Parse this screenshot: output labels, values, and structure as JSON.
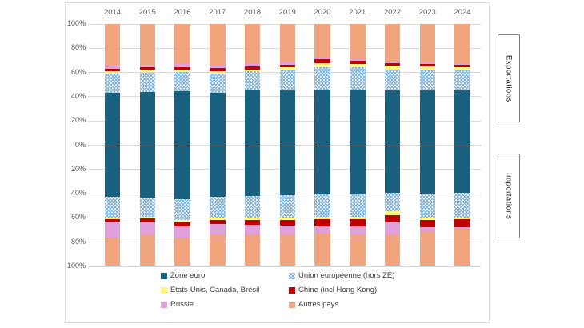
{
  "chart": {
    "side_labels": {
      "top": "Exportations",
      "bottom": "Importations"
    },
    "y_axis_tick_labels": [
      "100%",
      "80%",
      "60%",
      "40%",
      "20%",
      "0%",
      "20%",
      "40%",
      "60%",
      "80%",
      "100%"
    ],
    "colors": {
      "zone_euro": "#1a607f",
      "ue_hors_ze": "#8fbade",
      "usa_canada_bresil": "#fdf87d",
      "chine": "#c00000",
      "russie": "#e2a0db",
      "autres_pays": "#f1a57e",
      "gridline": "#d9d9d9",
      "zero_line": "#bdbdbd",
      "axis_text": "#595959"
    },
    "legend": [
      {
        "key": "zone_euro",
        "label": "Zone euro"
      },
      {
        "key": "ue_hors_ze",
        "label": "Union européenne (hors ZE)"
      },
      {
        "key": "usa_canada_bresil",
        "label": "États-Unis, Canada, Brésil"
      },
      {
        "key": "chine",
        "label": "Chine (incl Hong Kong)"
      },
      {
        "key": "russie",
        "label": "Russie"
      },
      {
        "key": "autres_pays",
        "label": "Autres pays"
      }
    ]
  },
  "chart_data": {
    "type": "bar",
    "variant": "100-percent-stacked, mirrored top(exports)/bottom(imports)",
    "unit": "%",
    "ylim": [
      0,
      100
    ],
    "grid": true,
    "categories": [
      "2014",
      "2015",
      "2016",
      "2017",
      "2018",
      "2019",
      "2020",
      "2021",
      "2022",
      "2023",
      "2024"
    ],
    "panels": [
      {
        "name": "Exportations",
        "series": [
          {
            "key": "zone_euro",
            "name": "Zone euro",
            "values": [
              43.5,
              44,
              44.5,
              43,
              46,
              45.5,
              46,
              46,
              45.5,
              45,
              45
            ]
          },
          {
            "key": "ue_hors_ze",
            "name": "Union européenne (hors ZE)",
            "values": [
              15.5,
              16,
              16,
              16,
              15,
              17,
              18.5,
              18,
              17,
              17.5,
              17
            ]
          },
          {
            "key": "usa_canada_bresil",
            "name": "États-Unis, Canada, Brésil",
            "values": [
              2,
              2,
              2,
              2,
              1.5,
              2,
              3,
              3,
              3,
              2.5,
              2.5
            ]
          },
          {
            "key": "chine",
            "name": "Chine (incl Hong Kong)",
            "values": [
              2,
              2,
              2,
              2.5,
              2.5,
              2,
              3,
              2.5,
              2,
              2,
              2
            ]
          },
          {
            "key": "russie",
            "name": "Russie",
            "values": [
              3.5,
              2.5,
              3,
              3,
              2,
              1.5,
              1.5,
              1.5,
              1,
              1,
              0.5
            ]
          },
          {
            "key": "autres_pays",
            "name": "Autres pays",
            "values": [
              33.5,
              33.5,
              32.5,
              33.5,
              33,
              32,
              28,
              29,
              31.5,
              32,
              33
            ]
          }
        ]
      },
      {
        "name": "Importations",
        "series": [
          {
            "key": "zone_euro",
            "name": "Zone euro",
            "values": [
              42.5,
              43,
              44.5,
              42.5,
              42,
              41.5,
              40.5,
              40.5,
              39,
              40,
              39
            ]
          },
          {
            "key": "ue_hors_ze",
            "name": "Union européenne (hors ZE)",
            "values": [
              17,
              16,
              17.5,
              17.5,
              18,
              18.5,
              18.5,
              18.5,
              15.5,
              20,
              20.5
            ]
          },
          {
            "key": "usa_canada_bresil",
            "name": "États-Unis, Canada, Brésil",
            "values": [
              1.5,
              1.5,
              1.5,
              1.5,
              1.5,
              2,
              2,
              2,
              3,
              2,
              1.5
            ]
          },
          {
            "key": "chine",
            "name": "Chine (incl Hong Kong)",
            "values": [
              2,
              3,
              3.5,
              3.5,
              4,
              4.5,
              6,
              6,
              6.5,
              5.5,
              6.5
            ]
          },
          {
            "key": "russie",
            "name": "Russie",
            "values": [
              13.5,
              11,
              9.5,
              8.5,
              8,
              7,
              6,
              6.5,
              9.5,
              3.5,
              1
            ]
          },
          {
            "key": "autres_pays",
            "name": "Autres pays",
            "values": [
              23.5,
              25.5,
              23.5,
              26.5,
              26.5,
              26.5,
              27,
              26.5,
              26.5,
              29,
              31.5
            ]
          }
        ]
      }
    ]
  }
}
